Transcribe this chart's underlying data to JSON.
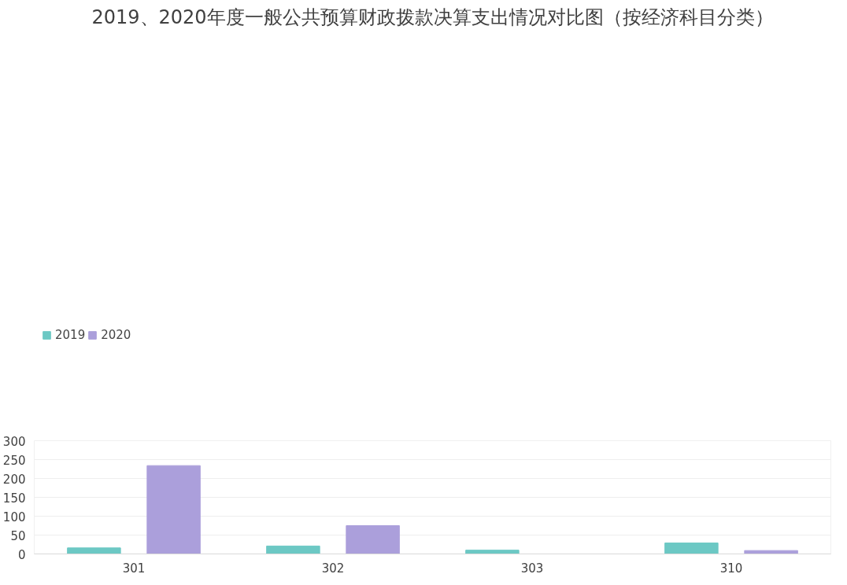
{
  "chart_data": {
    "type": "bar",
    "title": "2019、2020年度一般公共预算财政拨款决算支出情况对比图（按经济科目分类）",
    "categories": [
      "301",
      "302",
      "303",
      "310"
    ],
    "series": [
      {
        "name": "2019",
        "color": "#6cc8c4",
        "values": [
          16,
          21,
          10,
          29
        ]
      },
      {
        "name": "2020",
        "color": "#ab9fdb",
        "values": [
          234,
          75,
          null,
          9
        ]
      }
    ],
    "ylim": [
      0,
      300
    ],
    "yticks": [
      0,
      50,
      100,
      150,
      200,
      250,
      300
    ],
    "grid": "y",
    "legend": "top left"
  }
}
